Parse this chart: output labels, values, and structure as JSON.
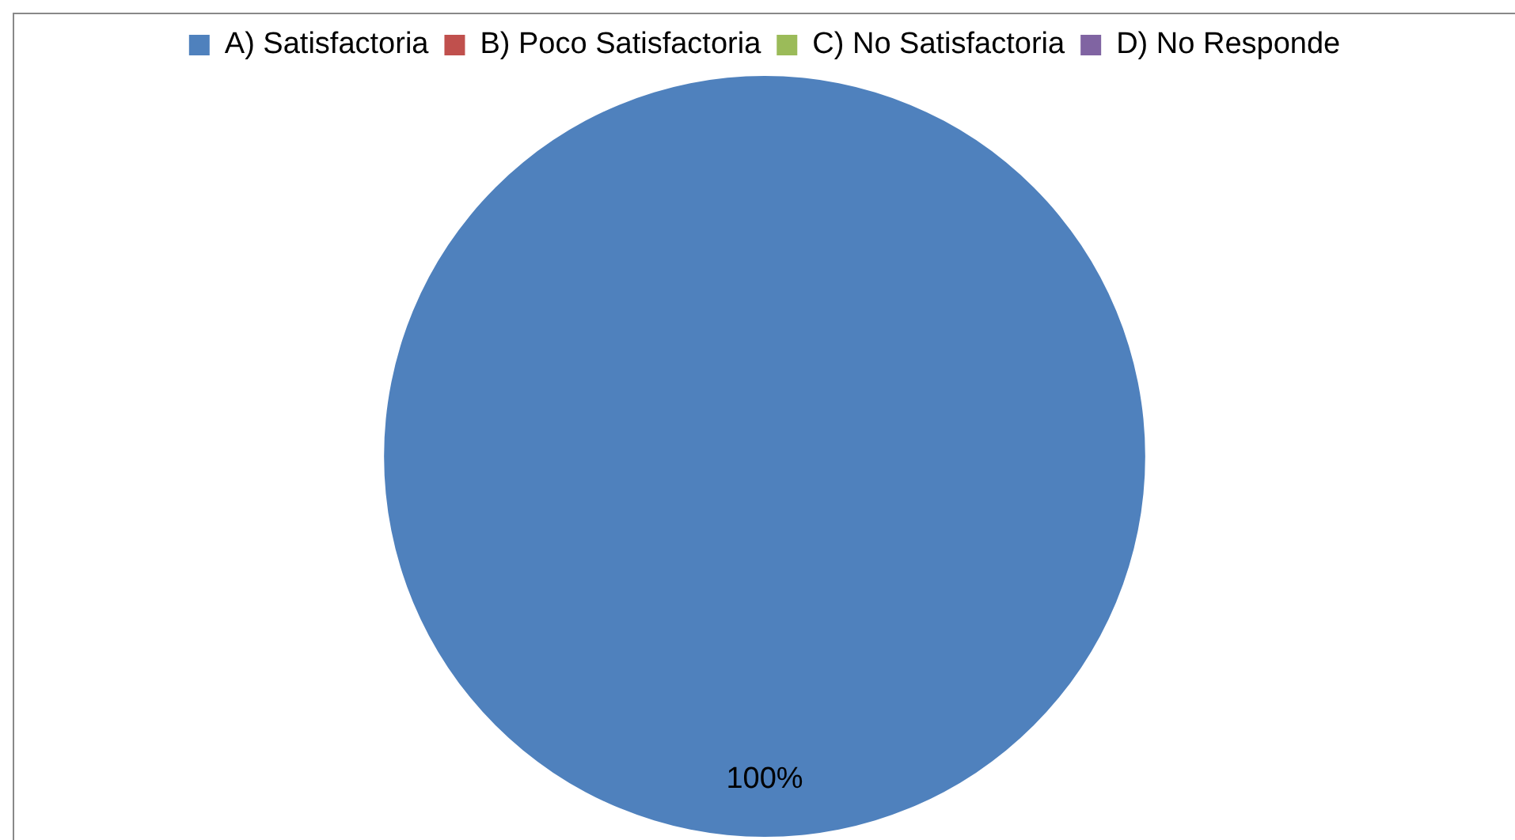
{
  "chart_data": {
    "type": "pie",
    "categories": [
      "A) Satisfactoria",
      "B) Poco Satisfactoria",
      "C) No Satisfactoria",
      "D) No Responde"
    ],
    "values": [
      100,
      0,
      0,
      0
    ],
    "colors": [
      "#4f81bd",
      "#c0504d",
      "#9bbb59",
      "#8064a2"
    ],
    "value_labels": [
      "100%",
      null,
      null,
      null
    ],
    "legend": "top"
  }
}
